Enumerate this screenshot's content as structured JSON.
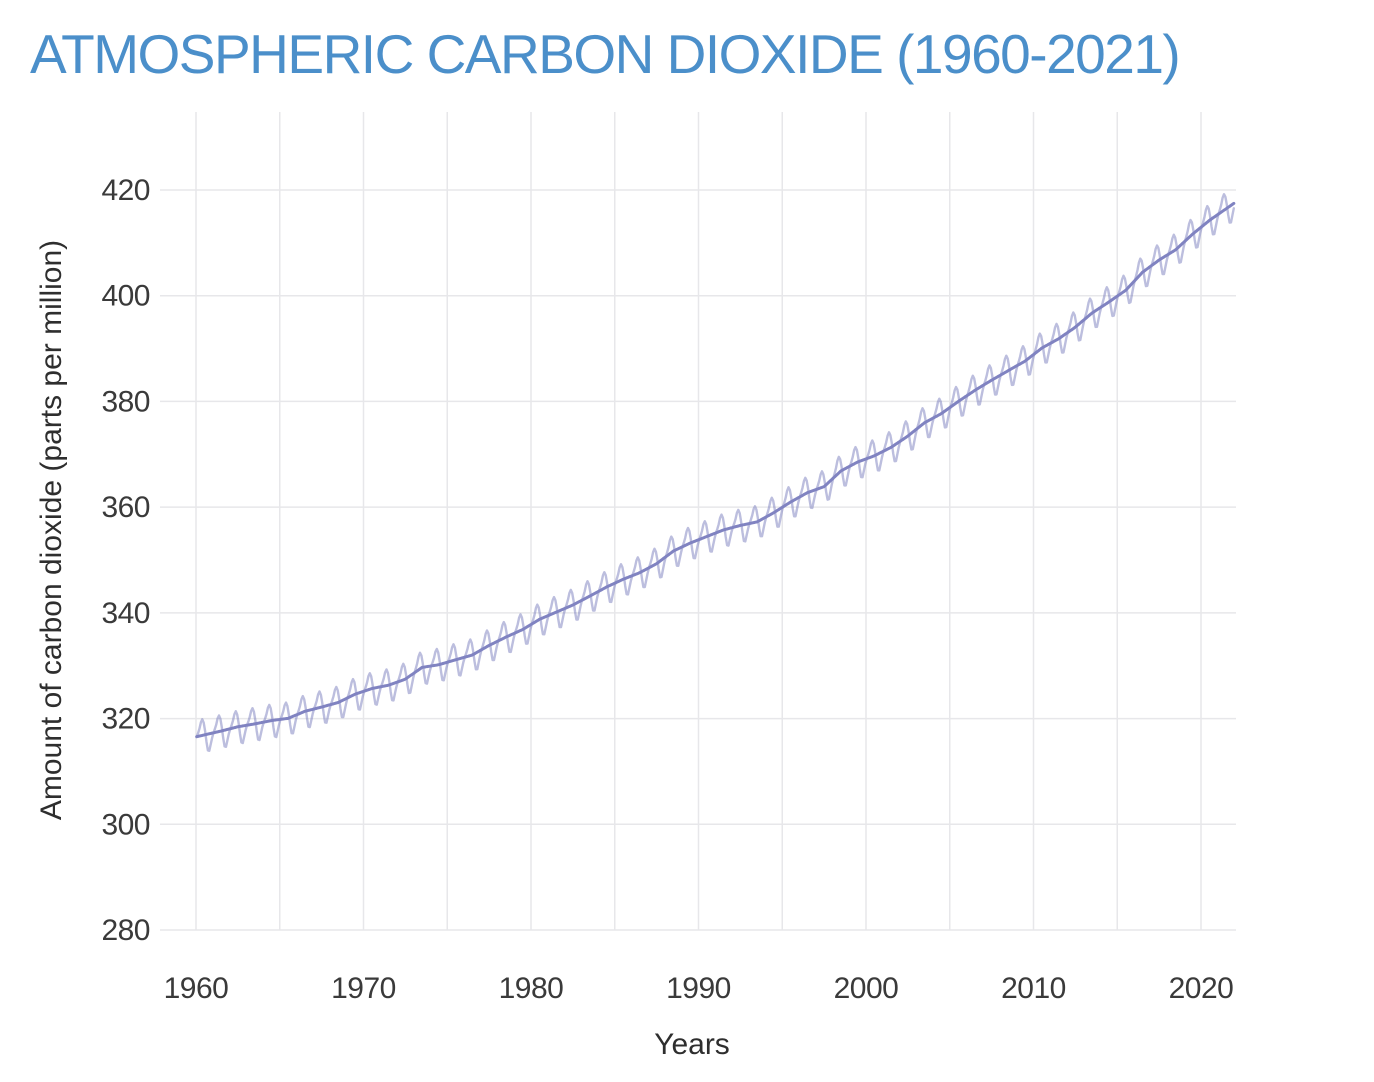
{
  "title": "ATMOSPHERIC CARBON DIOXIDE (1960-2021)",
  "colors": {
    "title_text": "#4b8fca",
    "tick_text": "#3a3a3a",
    "axis_title_text": "#2e2e2e",
    "gridline": "#e7e7ea",
    "trend_line": "#8083c1",
    "seasonal_line": "rgba(122,126,190,0.5)",
    "background": "#ffffff"
  },
  "chart_data": {
    "type": "line",
    "title": "ATMOSPHERIC CARBON DIOXIDE (1960-2021)",
    "xlabel": "Years",
    "ylabel": "Amount of carbon dioxide (parts per million)",
    "x_ticks": [
      1960,
      1970,
      1980,
      1990,
      2000,
      2010,
      2020
    ],
    "x_gridlines": [
      1960,
      1965,
      1970,
      1975,
      1980,
      1985,
      1990,
      1995,
      2000,
      2005,
      2010,
      2015,
      2020
    ],
    "y_ticks": [
      280,
      300,
      320,
      340,
      360,
      380,
      400,
      420
    ],
    "xlim": [
      1958.3,
      2022.2
    ],
    "ylim": [
      280,
      434.8
    ],
    "grid": true,
    "legend": false,
    "series": [
      {
        "name": "annual-mean-trend",
        "x": [
          1960,
          1961,
          1962,
          1963,
          1964,
          1965,
          1966,
          1967,
          1968,
          1969,
          1970,
          1971,
          1972,
          1973,
          1974,
          1975,
          1976,
          1977,
          1978,
          1979,
          1980,
          1981,
          1982,
          1983,
          1984,
          1985,
          1986,
          1987,
          1988,
          1989,
          1990,
          1991,
          1992,
          1993,
          1994,
          1995,
          1996,
          1997,
          1998,
          1999,
          2000,
          2001,
          2002,
          2003,
          2004,
          2005,
          2006,
          2007,
          2008,
          2009,
          2010,
          2011,
          2012,
          2013,
          2014,
          2015,
          2016,
          2017,
          2018,
          2019,
          2020,
          2021
        ],
        "values": [
          316.91,
          317.64,
          318.45,
          318.99,
          319.62,
          320.04,
          321.37,
          322.18,
          323.05,
          324.62,
          325.68,
          326.32,
          327.46,
          329.68,
          330.19,
          331.12,
          332.03,
          333.84,
          335.41,
          336.84,
          338.76,
          340.12,
          341.48,
          343.15,
          344.87,
          346.35,
          347.61,
          349.31,
          351.69,
          353.2,
          354.45,
          355.7,
          356.54,
          357.21,
          358.96,
          360.97,
          362.74,
          363.88,
          366.84,
          368.54,
          369.71,
          371.32,
          373.45,
          375.98,
          377.7,
          379.98,
          382.09,
          384.02,
          385.83,
          387.64,
          390.1,
          391.85,
          394.06,
          396.74,
          398.81,
          401.01,
          404.41,
          406.76,
          408.72,
          411.66,
          414.24,
          416.45
        ]
      },
      {
        "name": "monthly-seasonal-cycle",
        "description": "monthly values = annual trend + seasonal anomaly by month",
        "seasonal_anomaly_by_month": [
          -0.05,
          0.62,
          1.42,
          2.54,
          3.04,
          2.34,
          0.7,
          -1.41,
          -3.08,
          -3.22,
          -2.07,
          -0.92
        ]
      }
    ]
  }
}
